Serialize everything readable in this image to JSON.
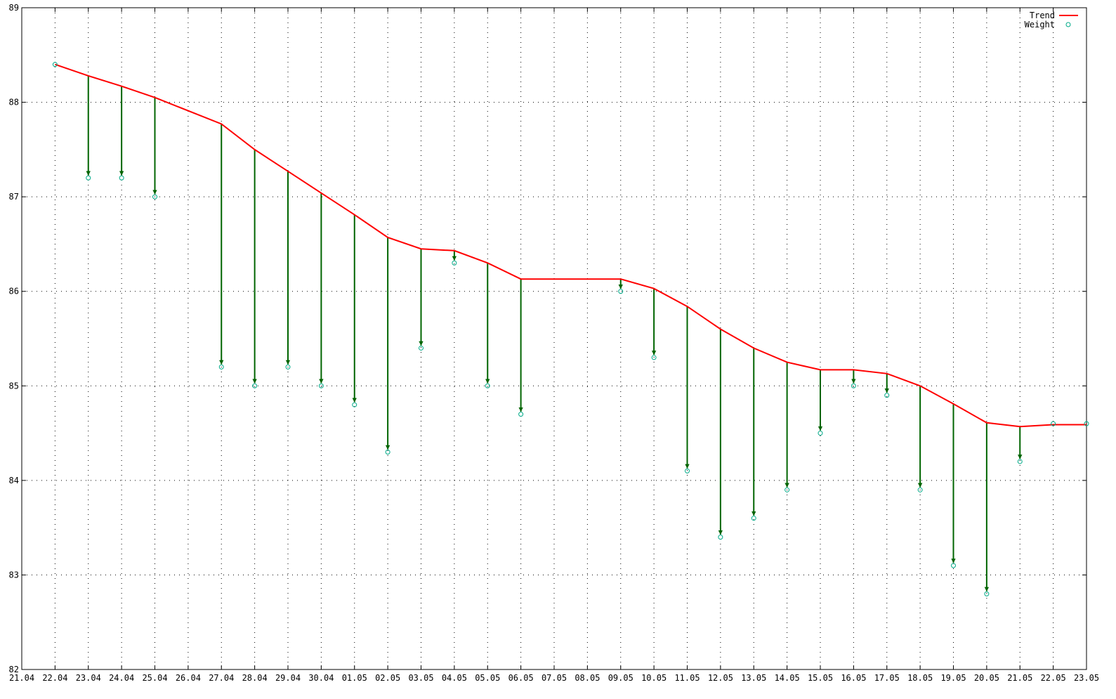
{
  "chart_data": {
    "type": "line",
    "title": "",
    "xlabel": "",
    "ylabel": "",
    "x": [
      "21.04",
      "22.04",
      "23.04",
      "24.04",
      "25.04",
      "26.04",
      "27.04",
      "28.04",
      "29.04",
      "30.04",
      "01.05",
      "02.05",
      "03.05",
      "04.05",
      "05.05",
      "06.05",
      "07.05",
      "08.05",
      "09.05",
      "10.05",
      "11.05",
      "12.05",
      "13.05",
      "14.05",
      "15.05",
      "16.05",
      "17.05",
      "18.05",
      "19.05",
      "20.05",
      "21.05",
      "22.05",
      "23.05"
    ],
    "ylim": [
      82,
      89
    ],
    "yticks": [
      82,
      83,
      84,
      85,
      86,
      87,
      88,
      89
    ],
    "grid": true,
    "legend_position": "top-right",
    "series": [
      {
        "name": "Trend",
        "color": "#ff0000",
        "style": "line",
        "points": [
          [
            "22.04",
            88.4
          ],
          [
            "23.04",
            88.28
          ],
          [
            "24.04",
            88.17
          ],
          [
            "25.04",
            88.05
          ],
          [
            "27.04",
            87.77
          ],
          [
            "28.04",
            87.5
          ],
          [
            "29.04",
            87.27
          ],
          [
            "30.04",
            87.04
          ],
          [
            "01.05",
            86.81
          ],
          [
            "02.05",
            86.57
          ],
          [
            "03.05",
            86.45
          ],
          [
            "04.05",
            86.43
          ],
          [
            "05.05",
            86.3
          ],
          [
            "06.05",
            86.13
          ],
          [
            "09.05",
            86.13
          ],
          [
            "10.05",
            86.03
          ],
          [
            "11.05",
            85.84
          ],
          [
            "12.05",
            85.6
          ],
          [
            "13.05",
            85.4
          ],
          [
            "14.05",
            85.25
          ],
          [
            "15.05",
            85.17
          ],
          [
            "16.05",
            85.17
          ],
          [
            "17.05",
            85.13
          ],
          [
            "18.05",
            85.0
          ],
          [
            "19.05",
            84.81
          ],
          [
            "20.05",
            84.61
          ],
          [
            "21.05",
            84.57
          ],
          [
            "22.05",
            84.59
          ],
          [
            "23.05",
            84.59
          ]
        ]
      },
      {
        "name": "Weight",
        "color": "#00aa88",
        "style": "points",
        "points": [
          [
            "22.04",
            88.4
          ],
          [
            "23.04",
            87.2
          ],
          [
            "24.04",
            87.2
          ],
          [
            "25.04",
            87.0
          ],
          [
            "27.04",
            85.2
          ],
          [
            "28.04",
            85.0
          ],
          [
            "29.04",
            85.2
          ],
          [
            "30.04",
            85.0
          ],
          [
            "01.05",
            84.8
          ],
          [
            "02.05",
            84.3
          ],
          [
            "03.05",
            85.4
          ],
          [
            "04.05",
            86.3
          ],
          [
            "05.05",
            85.0
          ],
          [
            "06.05",
            84.7
          ],
          [
            "09.05",
            86.0
          ],
          [
            "10.05",
            85.3
          ],
          [
            "11.05",
            84.1
          ],
          [
            "12.05",
            83.4
          ],
          [
            "13.05",
            83.6
          ],
          [
            "14.05",
            83.9
          ],
          [
            "15.05",
            84.5
          ],
          [
            "16.05",
            85.0
          ],
          [
            "17.05",
            84.9
          ],
          [
            "18.05",
            83.9
          ],
          [
            "19.05",
            83.1
          ],
          [
            "20.05",
            82.8
          ],
          [
            "21.05",
            84.2
          ],
          [
            "22.05",
            84.6
          ],
          [
            "23.05",
            84.6
          ]
        ]
      }
    ],
    "deviation_arrows": {
      "color": "#006400",
      "from_series": "Trend",
      "to_series": "Weight"
    }
  }
}
